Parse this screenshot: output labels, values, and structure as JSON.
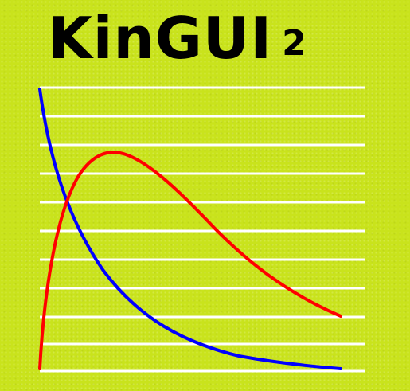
{
  "app": {
    "logo_text": "KinGUI",
    "version_label": "2"
  },
  "colors": {
    "background": "#c9e31c",
    "grid": "#ffffff",
    "curve_blue": "#0000ff",
    "curve_red": "#ff0000",
    "text": "#000000"
  },
  "icon": "kinetics-curves-logo"
}
